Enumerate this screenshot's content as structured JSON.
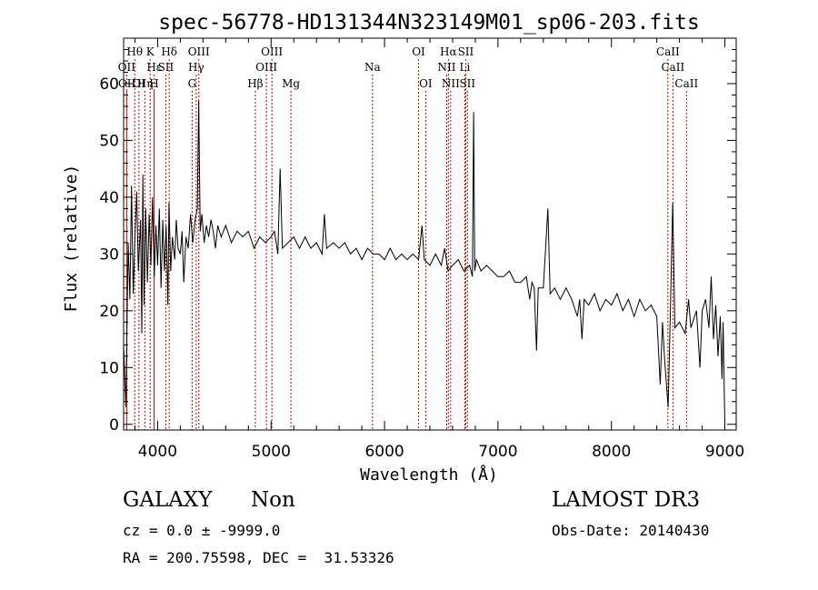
{
  "chart_data": {
    "type": "line",
    "title": "spec-56778-HD131344N323149M01_sp06-203.fits",
    "xlabel": "Wavelength (Å)",
    "ylabel": "Flux (relative)",
    "xlim": [
      3700,
      9100
    ],
    "ylim": [
      -1,
      68
    ],
    "x_ticks": [
      4000,
      5000,
      6000,
      7000,
      8000,
      9000
    ],
    "y_ticks": [
      0,
      10,
      20,
      30,
      40,
      50,
      60
    ],
    "grid": false,
    "series": [
      {
        "name": "flux",
        "points": [
          [
            3700,
            14
          ],
          [
            3720,
            3
          ],
          [
            3740,
            32
          ],
          [
            3755,
            22
          ],
          [
            3770,
            42
          ],
          [
            3785,
            23
          ],
          [
            3800,
            33
          ],
          [
            3815,
            41
          ],
          [
            3830,
            27
          ],
          [
            3850,
            36
          ],
          [
            3860,
            16
          ],
          [
            3870,
            44
          ],
          [
            3880,
            21
          ],
          [
            3895,
            38
          ],
          [
            3910,
            25
          ],
          [
            3925,
            37
          ],
          [
            3940,
            28
          ],
          [
            3955,
            40
          ],
          [
            3970,
            26
          ],
          [
            3985,
            35
          ],
          [
            4000,
            28
          ],
          [
            4015,
            38
          ],
          [
            4030,
            24
          ],
          [
            4045,
            36
          ],
          [
            4060,
            27
          ],
          [
            4075,
            35
          ],
          [
            4090,
            21
          ],
          [
            4100,
            39
          ],
          [
            4115,
            27
          ],
          [
            4130,
            33
          ],
          [
            4150,
            29
          ],
          [
            4165,
            36
          ],
          [
            4180,
            31
          ],
          [
            4200,
            30
          ],
          [
            4215,
            34
          ],
          [
            4230,
            25
          ],
          [
            4250,
            33
          ],
          [
            4270,
            31
          ],
          [
            4290,
            37
          ],
          [
            4310,
            32
          ],
          [
            4330,
            36
          ],
          [
            4350,
            38
          ],
          [
            4362,
            57
          ],
          [
            4375,
            34
          ],
          [
            4390,
            37
          ],
          [
            4410,
            32
          ],
          [
            4430,
            35
          ],
          [
            4450,
            33
          ],
          [
            4470,
            36
          ],
          [
            4490,
            34
          ],
          [
            4510,
            31
          ],
          [
            4530,
            35
          ],
          [
            4560,
            33
          ],
          [
            4600,
            35
          ],
          [
            4650,
            32
          ],
          [
            4700,
            34
          ],
          [
            4750,
            33
          ],
          [
            4800,
            34
          ],
          [
            4850,
            31
          ],
          [
            4900,
            33
          ],
          [
            4950,
            32
          ],
          [
            5000,
            33
          ],
          [
            5030,
            34
          ],
          [
            5060,
            30
          ],
          [
            5080,
            45
          ],
          [
            5100,
            31
          ],
          [
            5150,
            32
          ],
          [
            5200,
            33
          ],
          [
            5250,
            31
          ],
          [
            5300,
            33
          ],
          [
            5350,
            31
          ],
          [
            5400,
            32
          ],
          [
            5450,
            30
          ],
          [
            5470,
            37
          ],
          [
            5490,
            31
          ],
          [
            5550,
            32
          ],
          [
            5600,
            31
          ],
          [
            5650,
            32
          ],
          [
            5700,
            30
          ],
          [
            5750,
            31
          ],
          [
            5800,
            29
          ],
          [
            5850,
            31
          ],
          [
            5900,
            30
          ],
          [
            5950,
            30
          ],
          [
            6000,
            29
          ],
          [
            6050,
            31
          ],
          [
            6100,
            29
          ],
          [
            6150,
            30
          ],
          [
            6200,
            29
          ],
          [
            6250,
            30
          ],
          [
            6300,
            29
          ],
          [
            6330,
            35
          ],
          [
            6350,
            29
          ],
          [
            6400,
            28
          ],
          [
            6450,
            30
          ],
          [
            6500,
            28
          ],
          [
            6530,
            31
          ],
          [
            6560,
            27
          ],
          [
            6600,
            28
          ],
          [
            6650,
            29
          ],
          [
            6700,
            27
          ],
          [
            6750,
            28
          ],
          [
            6775,
            26
          ],
          [
            6785,
            55
          ],
          [
            6795,
            27
          ],
          [
            6810,
            29
          ],
          [
            6850,
            27
          ],
          [
            6900,
            28
          ],
          [
            6950,
            27
          ],
          [
            7000,
            26
          ],
          [
            7050,
            26
          ],
          [
            7100,
            27
          ],
          [
            7150,
            25
          ],
          [
            7200,
            25
          ],
          [
            7250,
            26
          ],
          [
            7280,
            22
          ],
          [
            7300,
            25
          ],
          [
            7320,
            24
          ],
          [
            7340,
            13
          ],
          [
            7355,
            24
          ],
          [
            7400,
            24
          ],
          [
            7440,
            38
          ],
          [
            7460,
            23
          ],
          [
            7500,
            24
          ],
          [
            7550,
            22
          ],
          [
            7600,
            24
          ],
          [
            7650,
            22
          ],
          [
            7700,
            19
          ],
          [
            7720,
            22
          ],
          [
            7740,
            15
          ],
          [
            7760,
            22
          ],
          [
            7800,
            21
          ],
          [
            7850,
            23
          ],
          [
            7900,
            20
          ],
          [
            7950,
            22
          ],
          [
            8000,
            21
          ],
          [
            8050,
            23
          ],
          [
            8100,
            20
          ],
          [
            8150,
            22
          ],
          [
            8200,
            19
          ],
          [
            8250,
            22
          ],
          [
            8300,
            20
          ],
          [
            8350,
            21
          ],
          [
            8400,
            19
          ],
          [
            8430,
            7
          ],
          [
            8450,
            18
          ],
          [
            8470,
            11
          ],
          [
            8500,
            3
          ],
          [
            8520,
            20
          ],
          [
            8540,
            39
          ],
          [
            8560,
            17
          ],
          [
            8600,
            18
          ],
          [
            8650,
            16
          ],
          [
            8680,
            22
          ],
          [
            8700,
            17
          ],
          [
            8750,
            20
          ],
          [
            8780,
            10
          ],
          [
            8800,
            20
          ],
          [
            8830,
            22
          ],
          [
            8860,
            17
          ],
          [
            8880,
            26
          ],
          [
            8900,
            15
          ],
          [
            8920,
            21
          ],
          [
            8940,
            12
          ],
          [
            8960,
            19
          ],
          [
            8975,
            8
          ],
          [
            8985,
            18
          ],
          [
            9000,
            0
          ]
        ]
      }
    ],
    "line_markers": [
      {
        "label": "OII",
        "wavelength": 3727,
        "row": 2
      },
      {
        "label": "OII",
        "wavelength": 3729,
        "row": 3
      },
      {
        "label": "Hθ",
        "wavelength": 3798,
        "row": 1
      },
      {
        "label": "OI",
        "wavelength": 3835,
        "row": 3
      },
      {
        "label": "Hη",
        "wavelength": 3889,
        "row": 3
      },
      {
        "label": "Hε",
        "wavelength": 3970,
        "row": 2
      },
      {
        "label": "K",
        "wavelength": 3934,
        "row": 1
      },
      {
        "label": "H",
        "wavelength": 3968,
        "row": 3
      },
      {
        "label": "SII",
        "wavelength": 4072,
        "row": 2
      },
      {
        "label": "Hδ",
        "wavelength": 4102,
        "row": 1
      },
      {
        "label": "G",
        "wavelength": 4304,
        "row": 3
      },
      {
        "label": "Hγ",
        "wavelength": 4340,
        "row": 2
      },
      {
        "label": "OIII",
        "wavelength": 4363,
        "row": 1
      },
      {
        "label": "Hβ",
        "wavelength": 4861,
        "row": 3
      },
      {
        "label": "OIII",
        "wavelength": 4959,
        "row": 2
      },
      {
        "label": "OIII",
        "wavelength": 5007,
        "row": 1
      },
      {
        "label": "Mg",
        "wavelength": 5175,
        "row": 3
      },
      {
        "label": "Na",
        "wavelength": 5894,
        "row": 2
      },
      {
        "label": "OI",
        "wavelength": 6300,
        "row": 1
      },
      {
        "label": "OI",
        "wavelength": 6363,
        "row": 3
      },
      {
        "label": "NII",
        "wavelength": 6548,
        "row": 2
      },
      {
        "label": "Hα",
        "wavelength": 6563,
        "row": 1
      },
      {
        "label": "NII",
        "wavelength": 6583,
        "row": 3
      },
      {
        "label": "SII",
        "wavelength": 6716,
        "row": 1
      },
      {
        "label": "Li",
        "wavelength": 6708,
        "row": 2
      },
      {
        "label": "SII",
        "wavelength": 6731,
        "row": 3
      },
      {
        "label": "CaII",
        "wavelength": 8498,
        "row": 1
      },
      {
        "label": "CaII",
        "wavelength": 8542,
        "row": 2
      },
      {
        "label": "CaII",
        "wavelength": 8662,
        "row": 3
      }
    ]
  },
  "info": {
    "class": "GALAXY",
    "subclass": "Non",
    "survey": "LAMOST DR3",
    "cz": "cz = 0.0 ± -9999.0",
    "obs_date": "Obs-Date: 20140430",
    "coords": "RA = 200.75598, DEC =  31.53326"
  }
}
